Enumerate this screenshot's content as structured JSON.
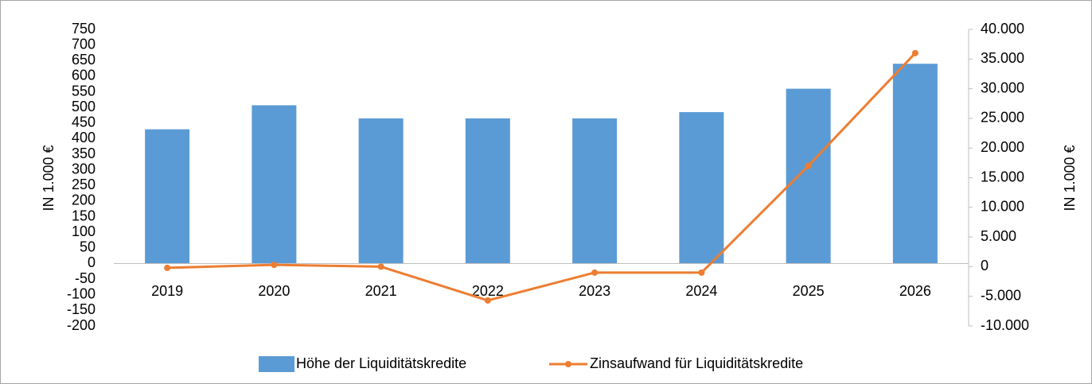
{
  "chart_data": {
    "type": "bar_line",
    "categories": [
      "2019",
      "2020",
      "2021",
      "2022",
      "2023",
      "2024",
      "2025",
      "2026"
    ],
    "series": [
      {
        "name": "Höhe der Liquiditätskredite",
        "type": "bar",
        "color": "#5b9bd5",
        "values": [
          430,
          507,
          465,
          465,
          465,
          485,
          560,
          640
        ]
      },
      {
        "name": "Zinsaufwand für Liquiditätskredite",
        "type": "line",
        "axis": "y2",
        "color": "#ed7d31",
        "values": [
          -200,
          300,
          0,
          -5700,
          -1000,
          -1000,
          17000,
          36000
        ]
      }
    ],
    "ylabel": "IN 1.000 €",
    "y2label": "IN 1.000 €",
    "ylim": [
      -200,
      750
    ],
    "yticks": [
      -200,
      -150,
      -100,
      -50,
      0,
      50,
      100,
      150,
      200,
      250,
      300,
      350,
      400,
      450,
      500,
      550,
      600,
      650,
      700,
      750
    ],
    "y2lim": [
      -10000,
      40000
    ],
    "y2ticks": [
      {
        "value": -10000,
        "label": "-10.000"
      },
      {
        "value": -5000,
        "label": "-5.000"
      },
      0,
      {
        "value": 5000,
        "label": "5.000"
      },
      {
        "value": 10000,
        "label": "10.000"
      },
      {
        "value": 15000,
        "label": "15.000"
      },
      {
        "value": 20000,
        "label": "20.000"
      },
      {
        "value": 25000,
        "label": "25.000"
      },
      {
        "value": 30000,
        "label": "30.000"
      },
      {
        "value": 35000,
        "label": "35.000"
      },
      {
        "value": 40000,
        "label": "40.000"
      }
    ],
    "legend": "bottom"
  }
}
